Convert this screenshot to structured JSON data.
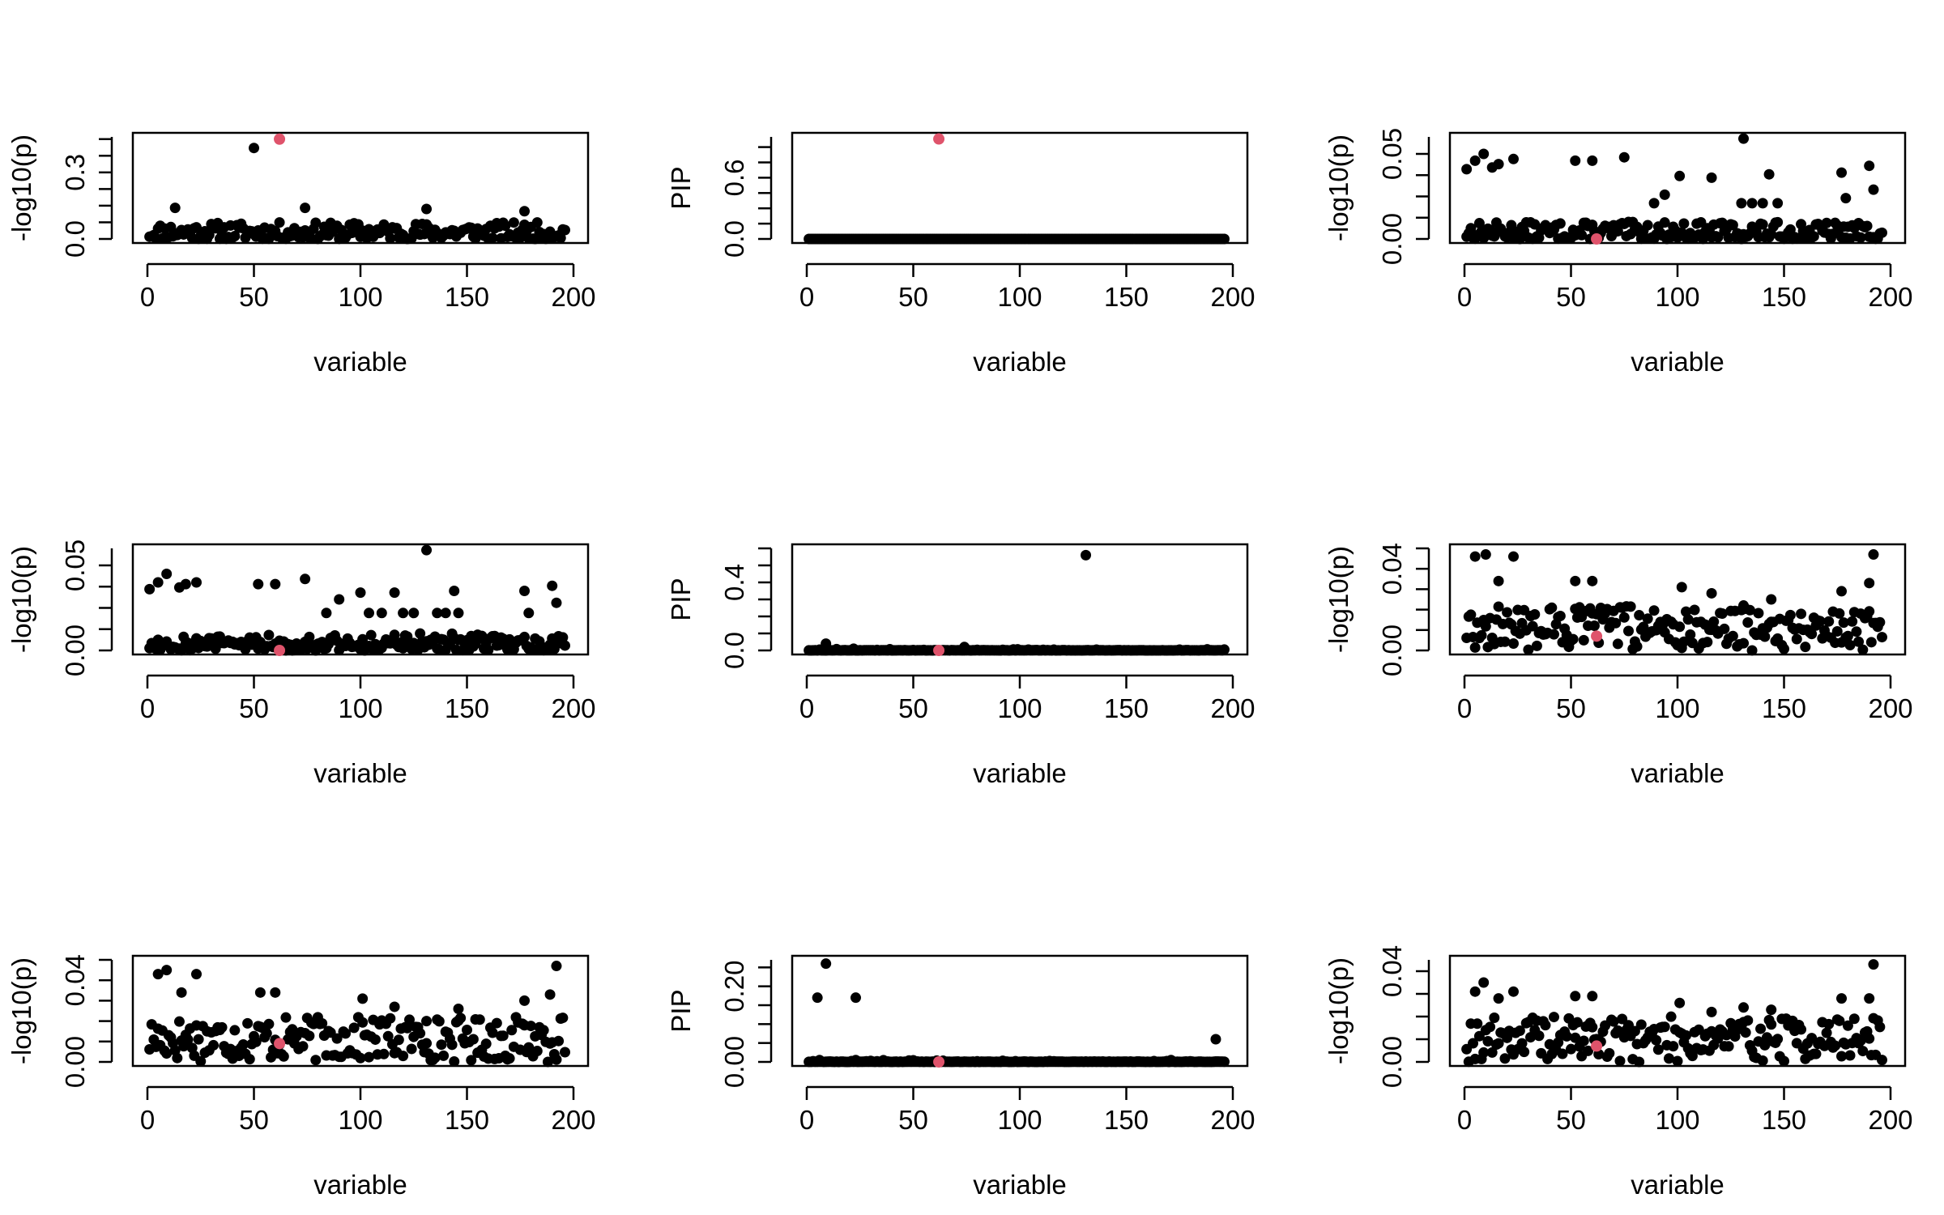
{
  "figure": {
    "title": "",
    "colors": {
      "points": "#000000",
      "highlight": "#DF536B"
    }
  },
  "chart_data": [
    {
      "type": "scatter",
      "xlabel": "variable",
      "ylabel": "-log10(p)",
      "xlim": [
        0,
        200
      ],
      "ylim": [
        0,
        0.46
      ],
      "xticks": [
        "0",
        "50",
        "100",
        "150",
        "200"
      ],
      "yticks": [
        "0.0",
        "0.3"
      ],
      "highlight": {
        "x": 62,
        "y": 0.45
      },
      "extra_points": [
        [
          50,
          0.41
        ],
        [
          13,
          0.14
        ],
        [
          74,
          0.14
        ],
        [
          131,
          0.135
        ],
        [
          177,
          0.125
        ]
      ],
      "background": {
        "seed": 11,
        "n": 196,
        "xmin": 1,
        "xmax": 196,
        "shape": "low",
        "lo": 0.0,
        "hi": 0.075
      }
    },
    {
      "type": "scatter",
      "xlabel": "variable",
      "ylabel": "PIP",
      "xlim": [
        0,
        200
      ],
      "ylim": [
        0,
        1.0
      ],
      "xticks": [
        "0",
        "50",
        "100",
        "150",
        "200"
      ],
      "yticks": [
        "0.0",
        "0.6"
      ],
      "highlight": {
        "x": 62,
        "y": 0.98
      },
      "extra_points": [],
      "background": {
        "seed": 12,
        "n": 196,
        "xmin": 1,
        "xmax": 196,
        "shape": "zero",
        "lo": 0.0,
        "hi": 0.0
      }
    },
    {
      "type": "scatter",
      "xlabel": "variable",
      "ylabel": "-log10(p)",
      "xlim": [
        0,
        200
      ],
      "ylim": [
        0,
        0.06
      ],
      "xticks": [
        "0",
        "50",
        "100",
        "150",
        "200"
      ],
      "yticks": [
        "0.00",
        "0.05"
      ],
      "highlight": {
        "x": 62,
        "y": 0.0
      },
      "extra_points": [
        [
          1,
          0.041
        ],
        [
          5,
          0.046
        ],
        [
          9,
          0.05
        ],
        [
          13,
          0.042
        ],
        [
          16,
          0.044
        ],
        [
          23,
          0.047
        ],
        [
          52,
          0.046
        ],
        [
          60,
          0.046
        ],
        [
          75,
          0.048
        ],
        [
          131,
          0.059
        ],
        [
          89,
          0.021
        ],
        [
          94,
          0.026
        ],
        [
          101,
          0.037
        ],
        [
          116,
          0.036
        ],
        [
          143,
          0.038
        ],
        [
          147,
          0.021
        ],
        [
          177,
          0.039
        ],
        [
          179,
          0.024
        ],
        [
          190,
          0.043
        ],
        [
          192,
          0.029
        ],
        [
          130,
          0.021
        ],
        [
          135,
          0.021
        ],
        [
          140,
          0.021
        ]
      ],
      "background": {
        "seed": 13,
        "n": 196,
        "xmin": 1,
        "xmax": 196,
        "shape": "low",
        "lo": 0.0,
        "hi": 0.01
      }
    },
    {
      "type": "scatter",
      "xlabel": "variable",
      "ylabel": "-log10(p)",
      "xlim": [
        0,
        200
      ],
      "ylim": [
        0,
        0.06
      ],
      "xticks": [
        "0",
        "50",
        "100",
        "150",
        "200"
      ],
      "yticks": [
        "0.00",
        "0.05"
      ],
      "highlight": {
        "x": 62,
        "y": 0.0
      },
      "extra_points": [
        [
          1,
          0.036
        ],
        [
          5,
          0.04
        ],
        [
          9,
          0.045
        ],
        [
          15,
          0.037
        ],
        [
          18,
          0.039
        ],
        [
          23,
          0.04
        ],
        [
          52,
          0.039
        ],
        [
          60,
          0.039
        ],
        [
          74,
          0.042
        ],
        [
          131,
          0.059
        ],
        [
          84,
          0.022
        ],
        [
          90,
          0.03
        ],
        [
          100,
          0.034
        ],
        [
          116,
          0.034
        ],
        [
          144,
          0.035
        ],
        [
          146,
          0.022
        ],
        [
          177,
          0.035
        ],
        [
          179,
          0.022
        ],
        [
          190,
          0.038
        ],
        [
          192,
          0.028
        ],
        [
          104,
          0.022
        ],
        [
          110,
          0.022
        ],
        [
          120,
          0.022
        ],
        [
          125,
          0.022
        ],
        [
          136,
          0.022
        ],
        [
          140,
          0.022
        ]
      ],
      "background": {
        "seed": 14,
        "n": 196,
        "xmin": 1,
        "xmax": 196,
        "shape": "low",
        "lo": 0.0,
        "hi": 0.01
      }
    },
    {
      "type": "scatter",
      "xlabel": "variable",
      "ylabel": "PIP",
      "xlim": [
        0,
        200
      ],
      "ylim": [
        0,
        0.6
      ],
      "xticks": [
        "0",
        "50",
        "100",
        "150",
        "200"
      ],
      "yticks": [
        "0.0",
        "0.4"
      ],
      "highlight": {
        "x": 62,
        "y": 0.0
      },
      "extra_points": [
        [
          131,
          0.56
        ],
        [
          9,
          0.04
        ],
        [
          74,
          0.02
        ],
        [
          22,
          0.01
        ]
      ],
      "background": {
        "seed": 15,
        "n": 196,
        "xmin": 1,
        "xmax": 196,
        "shape": "zero",
        "lo": 0.0,
        "hi": 0.008
      }
    },
    {
      "type": "scatter",
      "xlabel": "variable",
      "ylabel": "-log10(p)",
      "xlim": [
        0,
        200
      ],
      "ylim": [
        0,
        0.05
      ],
      "xticks": [
        "0",
        "50",
        "100",
        "150",
        "200"
      ],
      "yticks": [
        "0.00",
        "0.04"
      ],
      "highlight": {
        "x": 62,
        "y": 0.007
      },
      "extra_points": [
        [
          5,
          0.046
        ],
        [
          10,
          0.047
        ],
        [
          23,
          0.046
        ],
        [
          16,
          0.034
        ],
        [
          52,
          0.034
        ],
        [
          60,
          0.034
        ],
        [
          102,
          0.031
        ],
        [
          116,
          0.028
        ],
        [
          131,
          0.022
        ],
        [
          144,
          0.025
        ],
        [
          177,
          0.029
        ],
        [
          190,
          0.033
        ],
        [
          192,
          0.047
        ]
      ],
      "background": {
        "seed": 16,
        "n": 196,
        "xmin": 1,
        "xmax": 196,
        "shape": "mid",
        "lo": 0.0,
        "hi": 0.022
      }
    },
    {
      "type": "scatter",
      "xlabel": "variable",
      "ylabel": "-log10(p)",
      "xlim": [
        0,
        200
      ],
      "ylim": [
        0,
        0.05
      ],
      "xticks": [
        "0",
        "50",
        "100",
        "150",
        "200"
      ],
      "yticks": [
        "0.00",
        "0.04"
      ],
      "highlight": {
        "x": 62,
        "y": 0.009
      },
      "extra_points": [
        [
          5,
          0.043
        ],
        [
          9,
          0.045
        ],
        [
          23,
          0.043
        ],
        [
          16,
          0.034
        ],
        [
          53,
          0.034
        ],
        [
          60,
          0.034
        ],
        [
          101,
          0.031
        ],
        [
          116,
          0.027
        ],
        [
          131,
          0.02
        ],
        [
          146,
          0.026
        ],
        [
          177,
          0.03
        ],
        [
          189,
          0.033
        ],
        [
          192,
          0.047
        ]
      ],
      "background": {
        "seed": 17,
        "n": 196,
        "xmin": 1,
        "xmax": 196,
        "shape": "mid",
        "lo": 0.0,
        "hi": 0.022
      }
    },
    {
      "type": "scatter",
      "xlabel": "variable",
      "ylabel": "PIP",
      "xlim": [
        0,
        200
      ],
      "ylim": [
        0,
        0.27
      ],
      "xticks": [
        "0",
        "50",
        "100",
        "150",
        "200"
      ],
      "yticks": [
        "0.00",
        "0.20"
      ],
      "highlight": {
        "x": 62,
        "y": 0.0
      },
      "extra_points": [
        [
          9,
          0.26
        ],
        [
          5,
          0.17
        ],
        [
          23,
          0.17
        ],
        [
          192,
          0.06
        ]
      ],
      "background": {
        "seed": 18,
        "n": 196,
        "xmin": 1,
        "xmax": 196,
        "shape": "zero",
        "lo": 0.0,
        "hi": 0.005
      }
    },
    {
      "type": "scatter",
      "xlabel": "variable",
      "ylabel": "-log10(p)",
      "xlim": [
        0,
        200
      ],
      "ylim": [
        0,
        0.045
      ],
      "xticks": [
        "0",
        "50",
        "100",
        "150",
        "200"
      ],
      "yticks": [
        "0.00",
        "0.04"
      ],
      "highlight": {
        "x": 62,
        "y": 0.007
      },
      "extra_points": [
        [
          5,
          0.031
        ],
        [
          9,
          0.035
        ],
        [
          16,
          0.028
        ],
        [
          23,
          0.031
        ],
        [
          52,
          0.029
        ],
        [
          60,
          0.029
        ],
        [
          101,
          0.026
        ],
        [
          116,
          0.022
        ],
        [
          131,
          0.024
        ],
        [
          144,
          0.023
        ],
        [
          177,
          0.028
        ],
        [
          190,
          0.028
        ],
        [
          192,
          0.043
        ]
      ],
      "background": {
        "seed": 19,
        "n": 196,
        "xmin": 1,
        "xmax": 196,
        "shape": "mid",
        "lo": 0.0,
        "hi": 0.02
      }
    }
  ]
}
